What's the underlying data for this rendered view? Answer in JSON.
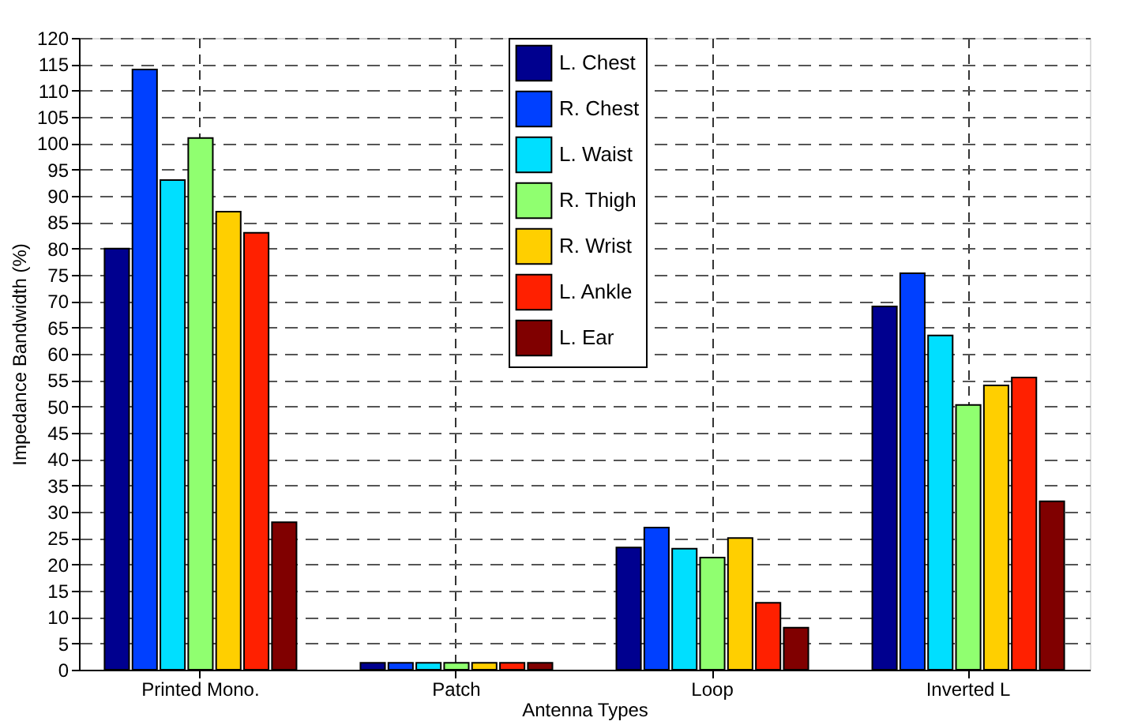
{
  "chart_data": {
    "type": "bar",
    "xlabel": "Antenna Types",
    "ylabel": "Impedance Bandwidth (%)",
    "categories": [
      "Printed Mono.",
      "Patch",
      "Loop",
      "Inverted L"
    ],
    "series": [
      {
        "name": "L. Chest",
        "color": "#00008f",
        "values": [
          80,
          1.3,
          23.2,
          69
        ]
      },
      {
        "name": "R. Chest",
        "color": "#0040ff",
        "values": [
          114,
          1.3,
          27,
          75.3
        ]
      },
      {
        "name": "L. Waist",
        "color": "#00dfff",
        "values": [
          93,
          1.3,
          23,
          63.5
        ]
      },
      {
        "name": "R. Thigh",
        "color": "#90ff70",
        "values": [
          101,
          1.3,
          21.3,
          50.3
        ]
      },
      {
        "name": "R. Wrist",
        "color": "#ffcf00",
        "values": [
          87,
          1.3,
          25,
          54
        ]
      },
      {
        "name": "L. Ankle",
        "color": "#ff2000",
        "values": [
          83,
          1.3,
          12.7,
          55.5
        ]
      },
      {
        "name": "L. Ear",
        "color": "#800000",
        "values": [
          28,
          1.3,
          8,
          32
        ]
      }
    ],
    "ylim": [
      0,
      120
    ],
    "yticks": [
      0,
      5,
      10,
      15,
      20,
      25,
      30,
      35,
      40,
      45,
      50,
      55,
      60,
      65,
      70,
      75,
      80,
      85,
      90,
      95,
      100,
      105,
      110,
      115,
      120
    ],
    "grid": true,
    "legend": "top"
  }
}
